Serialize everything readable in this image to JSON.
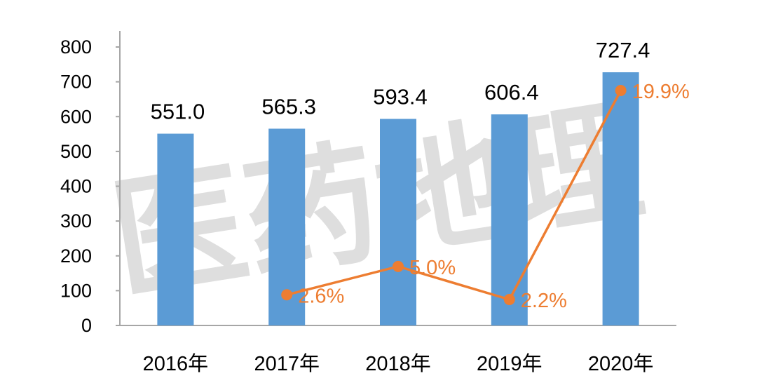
{
  "chart_data": {
    "type": "bar",
    "categories": [
      "2016年",
      "2017年",
      "2018年",
      "2019年",
      "2020年"
    ],
    "series": [
      {
        "type": "bar",
        "values": [
          551.0,
          565.3,
          593.4,
          606.4,
          727.4
        ],
        "labels": [
          "551.0",
          "565.3",
          "593.4",
          "606.4",
          "727.4"
        ],
        "color": "#5b9bd5"
      },
      {
        "type": "line",
        "values": [
          null,
          2.6,
          5.0,
          2.2,
          19.9
        ],
        "labels": [
          "",
          "2.6%",
          "5.0%",
          "2.2%",
          "19.9%"
        ],
        "color": "#ed7d31"
      }
    ],
    "y_ticks": [
      "0",
      "100",
      "200",
      "300",
      "400",
      "500",
      "600",
      "700",
      "800"
    ],
    "ylim": [
      0,
      800
    ],
    "grid": false,
    "legend": "none"
  },
  "watermark": {
    "text": "医药地理",
    "color": "#9a9a9a"
  }
}
